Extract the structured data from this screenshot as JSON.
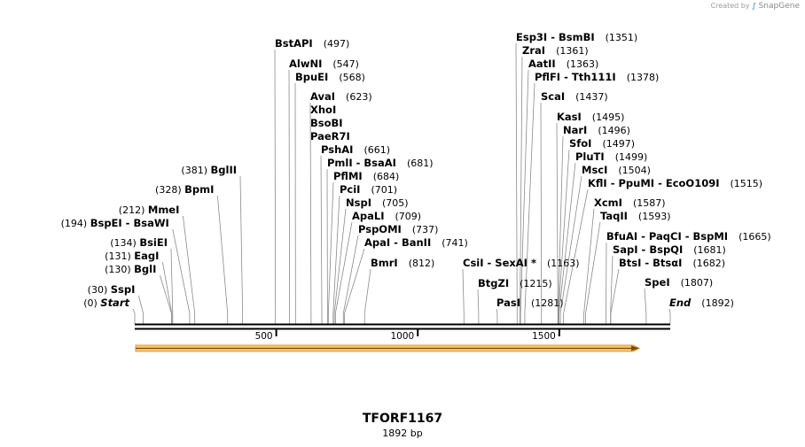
{
  "credit": {
    "prefix": "Created by",
    "brand": "SnapGene"
  },
  "map": {
    "title": "TFORF1167",
    "length_label": "1892 bp"
  },
  "colors": {
    "feature_fill": "#f7c873",
    "feature_stroke": "#e0982e",
    "backbone": "#000000"
  },
  "axis_ticks": [
    {
      "pos": 500,
      "label": "500"
    },
    {
      "pos": 1000,
      "label": "1000"
    },
    {
      "pos": 1500,
      "label": "1500"
    }
  ],
  "sites": [
    {
      "name": "Start",
      "pos": "(0)",
      "italic": true,
      "side": "left"
    },
    {
      "name": "SspI",
      "pos": "(30)",
      "side": "left"
    },
    {
      "name": "BglI",
      "pos": "(130)",
      "side": "left"
    },
    {
      "name": "EagI",
      "pos": "(131)",
      "side": "left"
    },
    {
      "name": "BsiEI",
      "pos": "(134)",
      "side": "left"
    },
    {
      "name": "BspEI - BsaWI",
      "pos": "(194)",
      "side": "left"
    },
    {
      "name": "MmeI",
      "pos": "(212)",
      "side": "left"
    },
    {
      "name": "BpmI",
      "pos": "(328)",
      "side": "left"
    },
    {
      "name": "BglII",
      "pos": "(381)",
      "side": "left"
    },
    {
      "name": "BstAPI",
      "pos": "(497)",
      "side": "right"
    },
    {
      "name": "AlwNI",
      "pos": "(547)",
      "side": "right"
    },
    {
      "name": "BpuEI",
      "pos": "(568)",
      "side": "right"
    },
    {
      "name": "AvaI",
      "pos": "(623)",
      "side": "right"
    },
    {
      "name": "XhoI",
      "pos": "",
      "side": "right"
    },
    {
      "name": "BsoBI",
      "pos": "",
      "side": "right"
    },
    {
      "name": "PaeR7I",
      "pos": "",
      "side": "right"
    },
    {
      "name": "PshAI",
      "pos": "(661)",
      "side": "right"
    },
    {
      "name": "PmlI - BsaAI",
      "pos": "(681)",
      "side": "right"
    },
    {
      "name": "PflMI",
      "pos": "(684)",
      "side": "right"
    },
    {
      "name": "PciI",
      "pos": "(701)",
      "side": "right"
    },
    {
      "name": "NspI",
      "pos": "(705)",
      "side": "right"
    },
    {
      "name": "ApaLI",
      "pos": "(709)",
      "side": "right"
    },
    {
      "name": "PspOMI",
      "pos": "(737)",
      "side": "right"
    },
    {
      "name": "ApaI - BanII",
      "pos": "(741)",
      "side": "right"
    },
    {
      "name": "BmrI",
      "pos": "(812)",
      "side": "right"
    },
    {
      "name": "CsiI - SexAI *",
      "pos": "(1163)",
      "side": "right"
    },
    {
      "name": "BtgZI",
      "pos": "(1215)",
      "side": "right"
    },
    {
      "name": "PasI",
      "pos": "(1281)",
      "side": "right"
    },
    {
      "name": "Esp3I - BsmBI",
      "pos": "(1351)",
      "side": "right"
    },
    {
      "name": "ZraI",
      "pos": "(1361)",
      "side": "right"
    },
    {
      "name": "AatII",
      "pos": "(1363)",
      "side": "right"
    },
    {
      "name": "PflFI - Tth111I",
      "pos": "(1378)",
      "side": "right"
    },
    {
      "name": "ScaI",
      "pos": "(1437)",
      "side": "right"
    },
    {
      "name": "KasI",
      "pos": "(1495)",
      "side": "right"
    },
    {
      "name": "NarI",
      "pos": "(1496)",
      "side": "right"
    },
    {
      "name": "SfoI",
      "pos": "(1497)",
      "side": "right"
    },
    {
      "name": "PluTI",
      "pos": "(1499)",
      "side": "right"
    },
    {
      "name": "MscI",
      "pos": "(1504)",
      "side": "right"
    },
    {
      "name": "KflI - PpuMI - EcoO109I",
      "pos": "(1515)",
      "side": "right"
    },
    {
      "name": "XcmI",
      "pos": "(1587)",
      "side": "right"
    },
    {
      "name": "TaqII",
      "pos": "(1593)",
      "side": "right"
    },
    {
      "name": "BfuAI - PaqCI - BspMI",
      "pos": "(1665)",
      "side": "right"
    },
    {
      "name": "SapI - BspQI",
      "pos": "(1681)",
      "side": "right"
    },
    {
      "name": "BtsI - BtsαI",
      "pos": "(1682)",
      "side": "right"
    },
    {
      "name": "SpeI",
      "pos": "(1807)",
      "side": "right"
    },
    {
      "name": "End",
      "pos": "(1892)",
      "italic": true,
      "side": "right"
    }
  ]
}
